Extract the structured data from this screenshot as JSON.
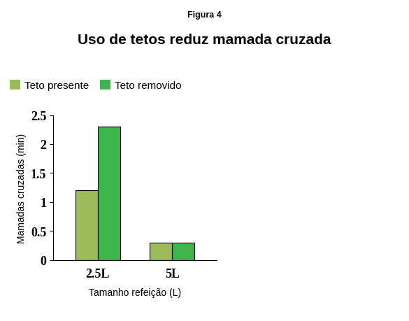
{
  "chart_data": {
    "type": "bar",
    "subtitle": "Figura 4",
    "title": "Uso de tetos reduz mamada cruzada",
    "x_label": "Tamanho refeição (L)",
    "y_label": "Mamadas cruzadas (min)",
    "categories": [
      "2.5L",
      "5L"
    ],
    "series": [
      {
        "name": "Teto presente",
        "color": "#9bbb59",
        "values": [
          1.2,
          0.3
        ]
      },
      {
        "name": "Teto removido",
        "color": "#3cb54a",
        "values": [
          2.3,
          0.3
        ]
      }
    ],
    "ylim": [
      0,
      2.5
    ],
    "yticks": [
      0,
      0.5,
      1,
      1.5,
      2,
      2.5
    ],
    "legend": "upper left"
  }
}
